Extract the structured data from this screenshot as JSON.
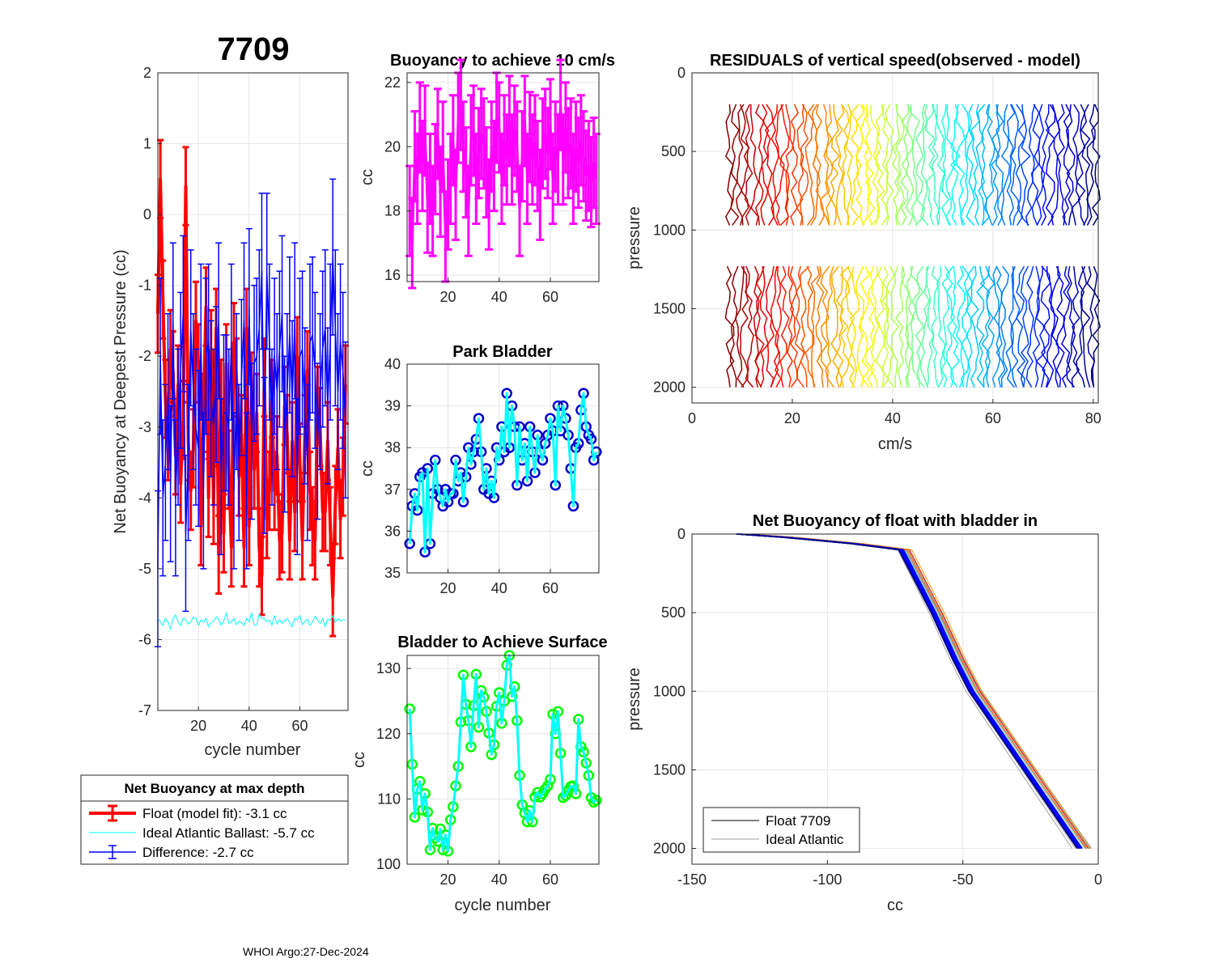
{
  "footer": "WHOI Argo:27-Dec-2024",
  "legend_main": {
    "title": "Net Buoyancy at max depth",
    "float": "Float (model fit):  -3.1 cc",
    "ideal": "Ideal Atlantic Ballast:  -5.7 cc",
    "diff": "Difference:  -2.7 cc"
  },
  "legend_net": {
    "float": "Float 7709",
    "ideal": "Ideal Atlantic"
  },
  "colors": {
    "red": "#ff0000",
    "blue": "#0000ff",
    "cyan": "#00ffff",
    "magenta": "#ff00ff",
    "green": "#00ff00",
    "darkblue": "#0000cd",
    "grid": "#e6e6e6",
    "gray": "#a0a0a0"
  },
  "chart_data": [
    {
      "id": "main",
      "type": "line",
      "title": "7709",
      "xlabel": "cycle number",
      "ylabel": "Net Buoyancy at Deepest Pressure (cc)",
      "xlim": [
        4,
        79
      ],
      "ylim": [
        -7,
        2
      ],
      "xticks": [
        20,
        40,
        60
      ],
      "yticks": [
        -7,
        -6,
        -5,
        -4,
        -3,
        -2,
        -1,
        0,
        1,
        2
      ],
      "x": [
        4,
        5,
        6,
        7,
        8,
        9,
        10,
        11,
        12,
        13,
        14,
        15,
        16,
        17,
        18,
        19,
        20,
        21,
        22,
        23,
        24,
        25,
        26,
        27,
        28,
        29,
        30,
        31,
        32,
        33,
        34,
        35,
        36,
        37,
        38,
        39,
        40,
        41,
        42,
        43,
        44,
        45,
        46,
        47,
        48,
        49,
        50,
        51,
        52,
        53,
        54,
        55,
        56,
        57,
        58,
        59,
        60,
        61,
        62,
        63,
        64,
        65,
        66,
        67,
        68,
        69,
        70,
        71,
        72,
        73,
        74,
        75,
        76,
        77,
        78
      ],
      "series": [
        {
          "name": "Float (model fit)",
          "values": [
            -1.4,
            0.5,
            -1.2,
            -2.6,
            -3.2,
            -1.9,
            -2.2,
            -3.4,
            -2.4,
            -3.8,
            -2.9,
            0.4,
            -3.2,
            -3.9,
            -3.3,
            -1.5,
            -2.1,
            -4.4,
            -2.8,
            -1.3,
            -4.0,
            -1.9,
            -4.1,
            -1.6,
            -4.8,
            -2.6,
            -4.5,
            -2.1,
            -3.6,
            -4.7,
            -1.8,
            -2.3,
            -3.7,
            -3.1,
            -4.7,
            -1.6,
            -4.4,
            -2.5,
            -3.6,
            -2.8,
            -4.7,
            -5.1,
            -2.3,
            -4.3,
            -3.9,
            -2.6,
            -3.9,
            -3.4,
            -4.6,
            -4.5,
            -2.7,
            -3.1,
            -4.6,
            -3.2,
            -4.2,
            -2.0,
            -3.5,
            -4.6,
            -3.1,
            -2.2,
            -3.9,
            -4.4,
            -4.6,
            -2.7,
            -3.0,
            -4.2,
            -4.2,
            -3.2,
            -4.4,
            -5.4,
            -4.1,
            -3.3,
            -4.3,
            -3.7,
            -2.4
          ],
          "err": 0.55
        },
        {
          "name": "Ideal Atlantic Ballast",
          "values": [
            -5.7,
            -5.75,
            -5.8,
            -5.7,
            -5.75,
            -5.85,
            -5.7,
            -5.65,
            -5.75,
            -5.8,
            -5.7,
            -5.72,
            -5.78,
            -5.75,
            -5.68,
            -5.7,
            -5.8,
            -5.72,
            -5.75,
            -5.7,
            -5.82,
            -5.76,
            -5.74,
            -5.68,
            -5.71,
            -5.8,
            -5.73,
            -5.62,
            -5.77,
            -5.75,
            -5.7,
            -5.79,
            -5.74,
            -5.76,
            -5.8,
            -5.7,
            -5.75,
            -5.62,
            -5.8,
            -5.79,
            -5.64,
            -5.7,
            -5.7,
            -5.75,
            -5.72,
            -5.8,
            -5.66,
            -5.78,
            -5.72,
            -5.77,
            -5.73,
            -5.7,
            -5.76,
            -5.82,
            -5.7,
            -5.72,
            -5.66,
            -5.79,
            -5.74,
            -5.71,
            -5.8,
            -5.75,
            -5.67,
            -5.72,
            -5.77,
            -5.7,
            -5.82,
            -5.71,
            -5.73,
            -5.66,
            -5.76,
            -5.7,
            -5.74,
            -5.72,
            -5.73
          ]
        },
        {
          "name": "Difference",
          "values": [
            -5.0,
            -2.0,
            -4.0,
            -3.5,
            -2.5,
            -3.8,
            -1.5,
            -4.0,
            -3.0,
            -2.2,
            -1.4,
            -4.5,
            -3.5,
            -1.6,
            -2.5,
            -3.0,
            -3.3,
            -1.8,
            -3.9,
            -2.0,
            -1.8,
            -2.6,
            -3.0,
            -2.4,
            -1.5,
            -3.7,
            -2.8,
            -2.8,
            -3.0,
            -1.8,
            -3.9,
            -2.5,
            -3.5,
            -2.3,
            -1.5,
            -3.9,
            -1.3,
            -3.2,
            -2.1,
            -2.0,
            -1.6,
            -0.8,
            -3.4,
            -0.8,
            -1.8,
            -3.0,
            -2.0,
            -2.5,
            -1.9,
            -1.4,
            -3.1,
            -2.5,
            -1.7,
            -2.6,
            -1.5,
            -3.7,
            -2.0,
            -1.9,
            -2.7,
            -3.5,
            -1.8,
            -1.7,
            -2.2,
            -3.2,
            -2.5,
            -1.9,
            -1.6,
            -2.7,
            -1.8,
            -0.6,
            -1.6,
            -2.5,
            -1.8,
            -2.2,
            -2.9
          ],
          "err": 1.1
        }
      ]
    },
    {
      "id": "buoy10",
      "type": "line",
      "title": "Buoyancy to achieve 10 cm/s",
      "ylabel": "cc",
      "xlim": [
        4,
        79
      ],
      "ylim": [
        15.8,
        22.3
      ],
      "xticks": [
        20,
        40,
        60
      ],
      "yticks": [
        16,
        18,
        20,
        22
      ],
      "x": [
        5,
        6,
        7,
        8,
        9,
        10,
        11,
        12,
        13,
        14,
        15,
        16,
        17,
        18,
        19,
        20,
        21,
        22,
        23,
        24,
        25,
        26,
        27,
        28,
        29,
        30,
        31,
        32,
        33,
        34,
        35,
        36,
        37,
        38,
        39,
        40,
        41,
        42,
        43,
        44,
        45,
        46,
        47,
        48,
        49,
        50,
        51,
        52,
        53,
        54,
        55,
        56,
        57,
        58,
        59,
        60,
        61,
        62,
        63,
        64,
        65,
        66,
        67,
        68,
        69,
        70,
        71,
        72,
        73,
        74,
        75,
        76,
        77,
        78
      ],
      "values": [
        18.0,
        17.0,
        19.7,
        19.0,
        20.6,
        19.4,
        20.5,
        18.1,
        19.0,
        18.0,
        19.3,
        20.4,
        18.6,
        20.0,
        17.2,
        18.2,
        19.0,
        20.2,
        18.5,
        20.9,
        21.3,
        20.0,
        19.2,
        18.0,
        20.2,
        20.5,
        19.0,
        19.8,
        20.4,
        20.1,
        19.2,
        18.2,
        20.0,
        19.4,
        20.9,
        20.6,
        19.0,
        20.2,
        19.6,
        20.8,
        19.6,
        20.5,
        20.0,
        18.0,
        19.7,
        20.8,
        19.0,
        20.3,
        19.6,
        20.2,
        19.4,
        18.5,
        20.1,
        20.4,
        19.8,
        20.7,
        19.0,
        20.0,
        19.6,
        21.3,
        19.6,
        20.6,
        19.8,
        20.1,
        19.0,
        20.0,
        19.5,
        20.2,
        19.7,
        19.1,
        19.4,
        18.9,
        19.5,
        19.0
      ],
      "err": 1.4
    },
    {
      "id": "park",
      "type": "line",
      "title": "Park Bladder",
      "ylabel": "cc",
      "xlim": [
        4,
        79
      ],
      "ylim": [
        35,
        40
      ],
      "xticks": [
        20,
        40,
        60
      ],
      "yticks": [
        35,
        36,
        37,
        38,
        39,
        40
      ],
      "x": [
        5,
        6,
        7,
        8,
        9,
        10,
        11,
        12,
        13,
        14,
        15,
        16,
        17,
        18,
        19,
        20,
        21,
        22,
        23,
        24,
        25,
        26,
        27,
        28,
        29,
        30,
        31,
        32,
        33,
        34,
        35,
        36,
        37,
        38,
        39,
        40,
        41,
        42,
        43,
        44,
        45,
        46,
        47,
        48,
        49,
        50,
        51,
        52,
        53,
        54,
        55,
        56,
        57,
        58,
        59,
        60,
        61,
        62,
        63,
        64,
        65,
        66,
        67,
        68,
        69,
        70,
        71,
        72,
        73,
        74,
        75,
        76,
        77,
        78
      ],
      "values": [
        35.7,
        36.6,
        36.9,
        36.5,
        37.3,
        37.4,
        35.5,
        37.5,
        35.7,
        36.9,
        37.7,
        37.0,
        36.8,
        36.6,
        37.0,
        36.7,
        36.9,
        36.9,
        37.7,
        37.2,
        37.4,
        36.7,
        37.3,
        38.0,
        37.6,
        37.9,
        38.2,
        38.7,
        37.9,
        37.0,
        37.5,
        36.9,
        37.2,
        36.8,
        38.0,
        37.7,
        38.5,
        37.9,
        39.3,
        38.0,
        39.0,
        38.5,
        37.1,
        38.5,
        37.7,
        38.1,
        37.2,
        38.5,
        37.9,
        37.4,
        38.3,
        37.9,
        37.7,
        38.1,
        38.3,
        38.7,
        38.4,
        37.1,
        39.0,
        38.4,
        39.0,
        38.7,
        38.3,
        37.5,
        36.6,
        38.0,
        38.1,
        38.9,
        39.3,
        38.5,
        38.3,
        38.2,
        37.7,
        37.9
      ]
    },
    {
      "id": "surface",
      "type": "line",
      "title": "Bladder to Achieve Surface",
      "xlabel": "cycle number",
      "ylabel": "cc",
      "xlim": [
        4,
        79
      ],
      "ylim": [
        100,
        132
      ],
      "xticks": [
        20,
        40,
        60
      ],
      "yticks": [
        100,
        110,
        120,
        130
      ],
      "x": [
        5,
        6,
        7,
        8,
        9,
        10,
        11,
        12,
        13,
        14,
        15,
        16,
        17,
        18,
        19,
        20,
        21,
        22,
        23,
        24,
        25,
        26,
        27,
        28,
        29,
        30,
        31,
        32,
        33,
        34,
        35,
        36,
        37,
        38,
        39,
        40,
        41,
        42,
        43,
        44,
        45,
        46,
        47,
        48,
        49,
        50,
        51,
        52,
        53,
        54,
        55,
        56,
        57,
        58,
        59,
        60,
        61,
        62,
        63,
        64,
        65,
        66,
        67,
        68,
        69,
        70,
        71,
        72,
        73,
        74,
        75,
        76,
        77,
        78
      ],
      "values": [
        123.8,
        115.3,
        107.2,
        111.5,
        112.7,
        108.3,
        110.8,
        108.0,
        102.2,
        105.5,
        104.0,
        103.5,
        105.4,
        102.2,
        104.5,
        102.0,
        106.8,
        108.8,
        112.0,
        115.0,
        121.8,
        129.0,
        124.5,
        122.0,
        118.0,
        124.3,
        129.1,
        121.0,
        126.6,
        125.6,
        123.4,
        120.1,
        116.8,
        118.3,
        124.2,
        126.3,
        121.6,
        125.0,
        130.5,
        132.0,
        125.7,
        127.2,
        122.0,
        113.6,
        109.1,
        107.8,
        106.5,
        108.2,
        106.5,
        110.3,
        111.0,
        110.3,
        110.8,
        111.5,
        112.0,
        113.0,
        123.0,
        120.0,
        123.4,
        117.0,
        110.2,
        110.5,
        111.3,
        111.9,
        112.0,
        110.8,
        122.2,
        118.0,
        117.2,
        115.5,
        113.6,
        110.2,
        109.5,
        109.8
      ]
    },
    {
      "id": "residuals",
      "type": "line",
      "title": "RESIDUALS of vertical speed(observed - model)",
      "xlabel": "cm/s",
      "ylabel": "pressure",
      "xlim": [
        0,
        81
      ],
      "ylim": [
        0,
        2100
      ],
      "xticks": [
        0,
        20,
        40,
        60,
        80
      ],
      "yticks": [
        0,
        500,
        1000,
        1500,
        2000
      ],
      "profile_count": 74,
      "segments": [
        [
          200,
          1000
        ],
        [
          1230,
          2000
        ]
      ]
    },
    {
      "id": "netbuoy",
      "type": "line",
      "title": "Net Buoyancy of float with bladder in",
      "xlabel": "cc",
      "ylabel": "pressure",
      "xlim": [
        -150,
        0
      ],
      "ylim": [
        0,
        2100
      ],
      "xticks": [
        -150,
        -100,
        -50,
        0
      ],
      "yticks": [
        0,
        500,
        1000,
        1500,
        2000
      ],
      "curve": {
        "p": [
          0,
          20,
          60,
          100,
          300,
          500,
          800,
          1000,
          1200,
          1500,
          1800,
          2000
        ],
        "cc": [
          -132,
          -115,
          -90,
          -72,
          -66,
          -60,
          -52,
          -46,
          -38,
          -26,
          -14,
          -6
        ]
      }
    }
  ]
}
